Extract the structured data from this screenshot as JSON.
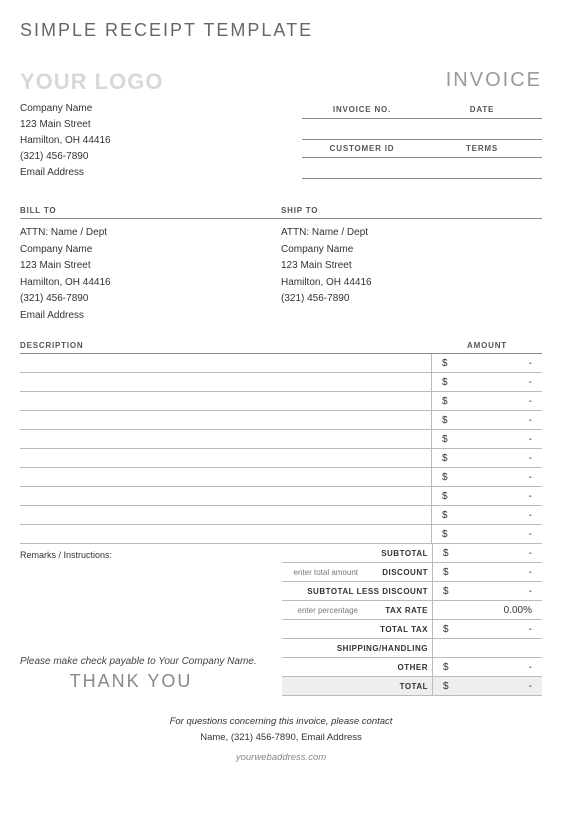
{
  "main_title": "SIMPLE RECEIPT TEMPLATE",
  "logo_text": "YOUR LOGO",
  "invoice_word": "INVOICE",
  "company": {
    "name": "Company Name",
    "street": "123 Main Street",
    "city": "Hamilton, OH  44416",
    "phone": "(321) 456-7890",
    "email": "Email Address"
  },
  "meta": {
    "invoice_no_label": "INVOICE NO.",
    "date_label": "DATE",
    "customer_id_label": "CUSTOMER ID",
    "terms_label": "TERMS",
    "invoice_no": "",
    "date": "",
    "customer_id": "",
    "terms": ""
  },
  "bill_to_label": "BILL TO",
  "ship_to_label": "SHIP TO",
  "bill_to": {
    "attn": "ATTN: Name / Dept",
    "company": "Company Name",
    "street": "123 Main Street",
    "city": "Hamilton, OH  44416",
    "phone": "(321) 456-7890",
    "email": "Email Address"
  },
  "ship_to": {
    "attn": "ATTN: Name / Dept",
    "company": "Company Name",
    "street": "123 Main Street",
    "city": "Hamilton, OH  44416",
    "phone": "(321) 456-7890"
  },
  "items_header": {
    "description": "DESCRIPTION",
    "amount": "AMOUNT"
  },
  "items": [
    {
      "desc": "",
      "currency": "$",
      "value": "-"
    },
    {
      "desc": "",
      "currency": "$",
      "value": "-"
    },
    {
      "desc": "",
      "currency": "$",
      "value": "-"
    },
    {
      "desc": "",
      "currency": "$",
      "value": "-"
    },
    {
      "desc": "",
      "currency": "$",
      "value": "-"
    },
    {
      "desc": "",
      "currency": "$",
      "value": "-"
    },
    {
      "desc": "",
      "currency": "$",
      "value": "-"
    },
    {
      "desc": "",
      "currency": "$",
      "value": "-"
    },
    {
      "desc": "",
      "currency": "$",
      "value": "-"
    },
    {
      "desc": "",
      "currency": "$",
      "value": "-"
    }
  ],
  "remarks_label": "Remarks / Instructions:",
  "payable_text": "Please make check payable to Your Company Name.",
  "thank_you": "THANK YOU",
  "totals": {
    "subtotal": {
      "label": "SUBTOTAL",
      "currency": "$",
      "value": "-"
    },
    "discount": {
      "hint": "enter total amount",
      "label": "DISCOUNT",
      "currency": "$",
      "value": "-"
    },
    "sub_less": {
      "label": "SUBTOTAL LESS DISCOUNT",
      "currency": "$",
      "value": "-"
    },
    "tax_rate": {
      "hint": "enter percentage",
      "label": "TAX RATE",
      "value": "0.00%"
    },
    "total_tax": {
      "label": "TOTAL TAX",
      "currency": "$",
      "value": "-"
    },
    "shipping": {
      "label": "SHIPPING/HANDLING",
      "currency": "",
      "value": ""
    },
    "other": {
      "label": "OTHER",
      "currency": "$",
      "value": "-"
    },
    "total": {
      "label": "TOTAL",
      "currency": "$",
      "value": "-"
    }
  },
  "footer": {
    "question": "For questions concerning this invoice, please contact",
    "contact": "Name, (321) 456-7890, Email Address",
    "web": "yourwebaddress.com"
  },
  "colors": {
    "title_gray": "#666666",
    "logo_gray": "#d8d8d8",
    "invoice_gray": "#999999",
    "border": "#888888",
    "row_border": "#bbbbbb",
    "total_bg": "#eeeeee"
  }
}
